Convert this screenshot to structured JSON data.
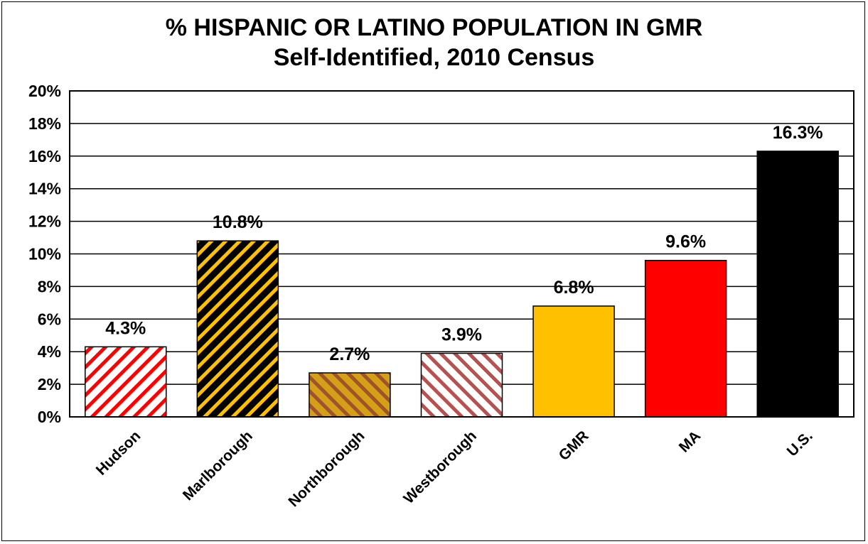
{
  "chart_data": {
    "type": "bar",
    "title": "% HISPANIC OR LATINO POPULATION IN GMR",
    "subtitle": "Self-Identified,  2010 Census",
    "categories": [
      "Hudson",
      "Marlborough",
      "Northborough",
      "Westborough",
      "GMR",
      "MA",
      "U.S."
    ],
    "values": [
      4.3,
      10.8,
      2.7,
      3.9,
      6.8,
      9.6,
      16.3
    ],
    "data_labels": [
      "4.3%",
      "10.8%",
      "2.7%",
      "3.9%",
      "6.8%",
      "9.6%",
      "16.3%"
    ],
    "ylim": [
      0,
      20
    ],
    "y_ticks": [
      "0%",
      "2%",
      "4%",
      "6%",
      "8%",
      "10%",
      "12%",
      "14%",
      "16%",
      "18%",
      "20%"
    ],
    "grid": true,
    "legend": "none",
    "bar_styles": [
      {
        "pattern": "diagonal-stripes",
        "fg": "#ff0000",
        "bg": "#ffffff"
      },
      {
        "pattern": "diagonal-stripes",
        "fg": "#ffc000",
        "bg": "#000000"
      },
      {
        "pattern": "diagonal-stripes",
        "fg": "#a0522d",
        "bg": "#d4a017"
      },
      {
        "pattern": "diagonal-stripes",
        "fg": "#b5524f",
        "bg": "#ffffff"
      },
      {
        "pattern": "solid",
        "fg": "#ffc000"
      },
      {
        "pattern": "solid",
        "fg": "#ff0000"
      },
      {
        "pattern": "solid",
        "fg": "#000000"
      }
    ]
  }
}
